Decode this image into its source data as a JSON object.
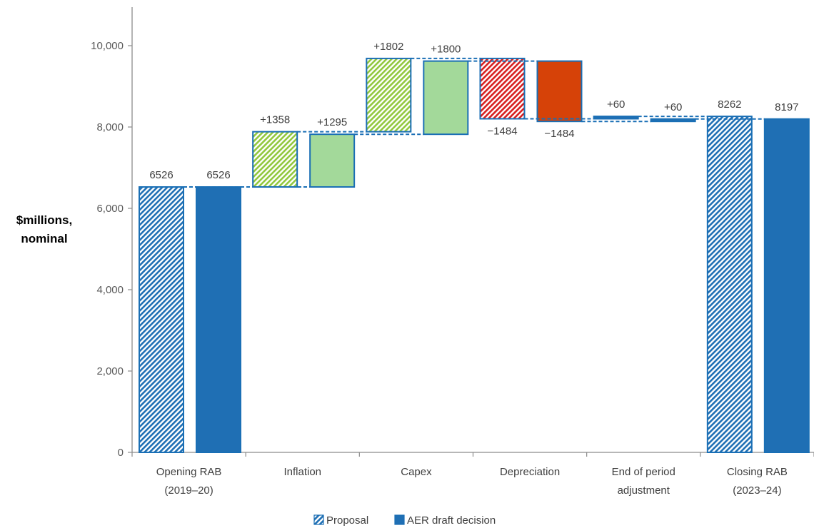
{
  "chart_data": {
    "type": "waterfall",
    "ylabel_lines": [
      "$millions,",
      "nominal"
    ],
    "ylim": [
      0,
      11000
    ],
    "yticks": [
      0,
      2000,
      4000,
      6000,
      8000,
      10000
    ],
    "ytick_labels": [
      "0",
      "2,000",
      "4,000",
      "6,000",
      "8,000",
      "10,000"
    ],
    "categories": [
      {
        "lines": [
          "Opening RAB",
          "(2019–20)"
        ]
      },
      {
        "lines": [
          "Inflation"
        ]
      },
      {
        "lines": [
          "Capex"
        ]
      },
      {
        "lines": [
          "Depreciation"
        ]
      },
      {
        "lines": [
          "End of period",
          "adjustment"
        ]
      },
      {
        "lines": [
          "Closing RAB",
          "(2023–24)"
        ]
      }
    ],
    "series": [
      {
        "name": "Proposal",
        "style": "hatched",
        "steps": [
          {
            "kind": "total",
            "value": 6526,
            "label": "6526"
          },
          {
            "kind": "delta",
            "value": 1358,
            "label": "+1358"
          },
          {
            "kind": "delta",
            "value": 1802,
            "label": "+1802"
          },
          {
            "kind": "delta",
            "value": -1484,
            "label": "−1484"
          },
          {
            "kind": "delta",
            "value": 60,
            "label": "+60"
          },
          {
            "kind": "total",
            "value": 8262,
            "label": "8262"
          }
        ]
      },
      {
        "name": "AER draft decision",
        "style": "solid",
        "steps": [
          {
            "kind": "total",
            "value": 6526,
            "label": "6526"
          },
          {
            "kind": "delta",
            "value": 1295,
            "label": "+1295"
          },
          {
            "kind": "delta",
            "value": 1800,
            "label": "+1800"
          },
          {
            "kind": "delta",
            "value": -1484,
            "label": "−1484"
          },
          {
            "kind": "delta",
            "value": 60,
            "label": "+60"
          },
          {
            "kind": "total",
            "value": 8197,
            "label": "8197"
          }
        ]
      }
    ],
    "colors": {
      "total": "#1f6fb4",
      "increase": "#a3d99a",
      "increase_hatch": "#92c83e",
      "decrease": "#d64208",
      "decrease_hatch": "#d81e1e",
      "outline": "#1a6fb5",
      "connector": "#1a6fb5",
      "axis": "#8c8c8c"
    },
    "legend": [
      {
        "label": "Proposal",
        "style": "hatched"
      },
      {
        "label": "AER draft decision",
        "style": "solid"
      }
    ],
    "legend_position": "bottom"
  }
}
